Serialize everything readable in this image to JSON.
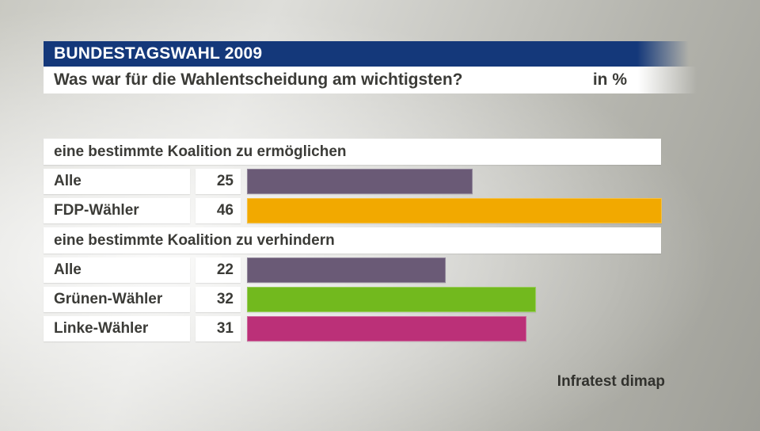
{
  "header": {
    "kicker": "BUNDESTAGSWAHL 2009",
    "question": "Was war für die Wahlentscheidung am wichtigsten?",
    "unit_label": "in %"
  },
  "footer": {
    "source": "Infratest dimap"
  },
  "colors": {
    "kicker_bg": "#14387a",
    "kicker_text": "#ffffff",
    "text": "#3b3b37",
    "band_bg": "#ffffff",
    "bar_purple": "#6a5a76",
    "bar_orange": "#f2a900",
    "bar_green": "#72b91e",
    "bar_magenta": "#bb3078"
  },
  "chart_data": {
    "type": "bar",
    "orientation": "horizontal",
    "title": "Was war für die Wahlentscheidung am wichtigsten?",
    "unit": "%",
    "xlim": [
      0,
      46
    ],
    "grid": false,
    "legend": false,
    "source": "Infratest dimap",
    "groups": [
      {
        "header": "eine bestimmte Koalition zu ermöglichen",
        "rows": [
          {
            "label": "Alle",
            "value": 25,
            "color": "#6a5a76"
          },
          {
            "label": "FDP-Wähler",
            "value": 46,
            "color": "#f2a900"
          }
        ]
      },
      {
        "header": "eine bestimmte Koalition zu verhindern",
        "rows": [
          {
            "label": "Alle",
            "value": 22,
            "color": "#6a5a76"
          },
          {
            "label": "Grünen-Wähler",
            "value": 32,
            "color": "#72b91e"
          },
          {
            "label": "Linke-Wähler",
            "value": 31,
            "color": "#bb3078"
          }
        ]
      }
    ]
  }
}
